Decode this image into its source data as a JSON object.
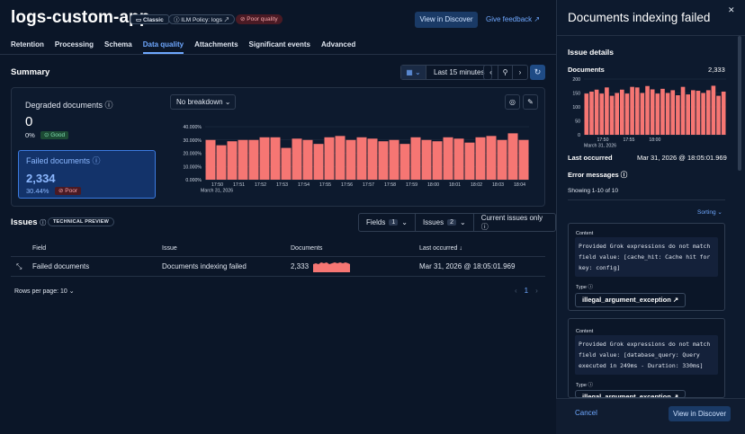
{
  "app": {
    "title": "logs-custom-app",
    "badges": {
      "classic": "▭ Classic",
      "ilm": "ⓘ ILM Policy: logs ↗",
      "quality": "⊘ Poor quality"
    },
    "view_in_discover": "View in Discover",
    "give_feedback": "Give feedback ↗"
  },
  "tabs": [
    "Retention",
    "Processing",
    "Schema",
    "Data quality",
    "Attachments",
    "Significant events",
    "Advanced"
  ],
  "active_tab": "Data quality",
  "summary": {
    "title": "Summary",
    "time_range": "Last 15 minutes",
    "degraded": {
      "label": "Degraded documents ⓘ",
      "value": "0",
      "percent": "0%",
      "status": "⊙ Good"
    },
    "failed": {
      "label": "Failed documents ⓘ",
      "value": "2,334",
      "percent": "30.44%",
      "status": "⊘ Poor"
    },
    "breakdown": "No breakdown ⌄"
  },
  "chart_data": [
    {
      "type": "bar",
      "title": "Failed documents",
      "y_ticks": [
        "40.000%",
        "30.000%",
        "20.000%",
        "10.000%",
        "0.000%"
      ],
      "ylim": [
        0,
        40
      ],
      "x_ticks": [
        "17:50",
        "17:51",
        "17:52",
        "17:53",
        "17:54",
        "17:55",
        "17:56",
        "17:57",
        "17:58",
        "17:59",
        "18:00",
        "18:01",
        "18:02",
        "18:03",
        "18:04"
      ],
      "x_subtitle": "March 31, 2026",
      "color": "#f67673",
      "values": [
        30,
        26,
        29,
        30,
        30,
        32,
        32,
        24,
        31,
        30,
        27,
        32,
        33,
        30,
        32,
        31,
        29,
        30,
        27,
        32,
        30,
        29,
        32,
        31,
        28,
        32,
        33,
        30,
        35,
        30
      ]
    },
    {
      "type": "bar",
      "title": "Documents",
      "y_ticks": [
        "200",
        "150",
        "100",
        "50",
        "0"
      ],
      "ylim": [
        0,
        200
      ],
      "x_ticks": [
        "17:50",
        "17:55",
        "18:00"
      ],
      "x_subtitle": "March 31, 2026",
      "color": "#f67673",
      "values": [
        148,
        155,
        162,
        148,
        170,
        140,
        150,
        162,
        148,
        172,
        170,
        150,
        175,
        163,
        148,
        165,
        150,
        160,
        142,
        172,
        145,
        160,
        158,
        150,
        160,
        176,
        140,
        155
      ]
    }
  ],
  "issues": {
    "title": "Issues",
    "badge": "TECHNICAL PREVIEW",
    "filters": {
      "fields": "Fields",
      "fields_count": "1",
      "issues": "Issues",
      "issues_count": "2",
      "current": "Current issues only ⓘ"
    },
    "columns": {
      "field": "Field",
      "issue": "Issue",
      "documents": "Documents",
      "last": "Last occurred ↓"
    },
    "rows": [
      {
        "field": "Failed documents",
        "issue": "Documents indexing failed",
        "documents": "2,333",
        "last": "Mar 31, 2026 @ 18:05:01.969"
      }
    ],
    "rows_per_page": "Rows per page: 10 ⌄",
    "page": "1"
  },
  "flyout": {
    "title": "Documents indexing failed",
    "issue_details": "Issue details",
    "documents_label": "Documents",
    "documents_value": "2,333",
    "last_occurred_label": "Last occurred",
    "last_occurred_value": "Mar 31, 2026 @ 18:05:01.969",
    "error_messages": "Error messages ⓘ",
    "showing": "Showing 1-10 of 10",
    "sorting": "Sorting ⌄",
    "content_label": "Content",
    "type_label": "Type ⓘ",
    "errors": [
      {
        "content": "Provided Grok expressions do not match\nfield value: [cache_hit: Cache hit for\nkey: config]",
        "type": "illegal_argument_exception ↗"
      },
      {
        "content": "Provided Grok expressions do not match\nfield value: [database_query: Query\nexecuted in 249ms - Duration: 330ms]",
        "type": "illegal_argument_exception ↗"
      }
    ],
    "cancel": "Cancel",
    "view_in_discover": "View in Discover"
  }
}
